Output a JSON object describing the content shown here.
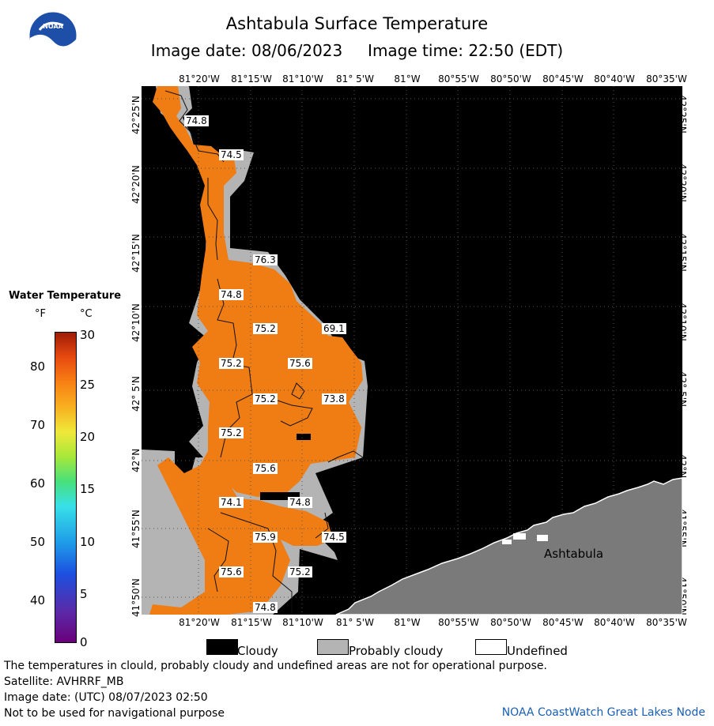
{
  "header": {
    "title": "Ashtabula Surface Temperature",
    "subtitle": "Image date: 08/06/2023     Image time: 22:50 (EDT)"
  },
  "axes": {
    "lon_labels": [
      "81°20'W",
      "81°15'W",
      "81°10'W",
      "81° 5'W",
      "81°W",
      "80°55'W",
      "80°50'W",
      "80°45'W",
      "80°40'W",
      "80°35'W"
    ],
    "lat_labels": [
      "42°25'N",
      "42°20'N",
      "42°15'N",
      "42°10'N",
      "42° 5'N",
      "42°N",
      "41°55'N",
      "41°50'N"
    ]
  },
  "temperature_labels": [
    "74.8",
    "74.5",
    "76.3",
    "74.8",
    "75.2",
    "69.1",
    "75.2",
    "75.6",
    "75.2",
    "73.8",
    "75.2",
    "75.6",
    "74.1",
    "74.8",
    "74.5",
    "75.9",
    "75.6",
    "75.2",
    "74.8"
  ],
  "place_name": "Ashtabula",
  "scale": {
    "title": "Water Temperature",
    "unit_f": "°F",
    "unit_c": "°C",
    "f_ticks": [
      "80",
      "70",
      "60",
      "50",
      "40"
    ],
    "c_ticks": [
      "30",
      "25",
      "20",
      "15",
      "10",
      "5",
      "0"
    ]
  },
  "legend": {
    "cloudy": "Cloudy",
    "probably_cloudy": "Probably cloudy",
    "undefined": "Undefined"
  },
  "footer": {
    "note": "The temperatures in clould, probably cloudy and undefined areas are not for operational purpose.",
    "satellite": "Satellite: AVHRRF_MB",
    "utc_date": "Image date: (UTC) 08/07/2023  02:50",
    "nav_warning": "Not to be used for navigational purpose",
    "credit": "NOAA CoastWatch Great Lakes Node"
  },
  "colors": {
    "cloudy": "#000000",
    "probably_cloudy": "#b4b4b4",
    "land": "#7a7a7a",
    "water": "#f07c14"
  }
}
